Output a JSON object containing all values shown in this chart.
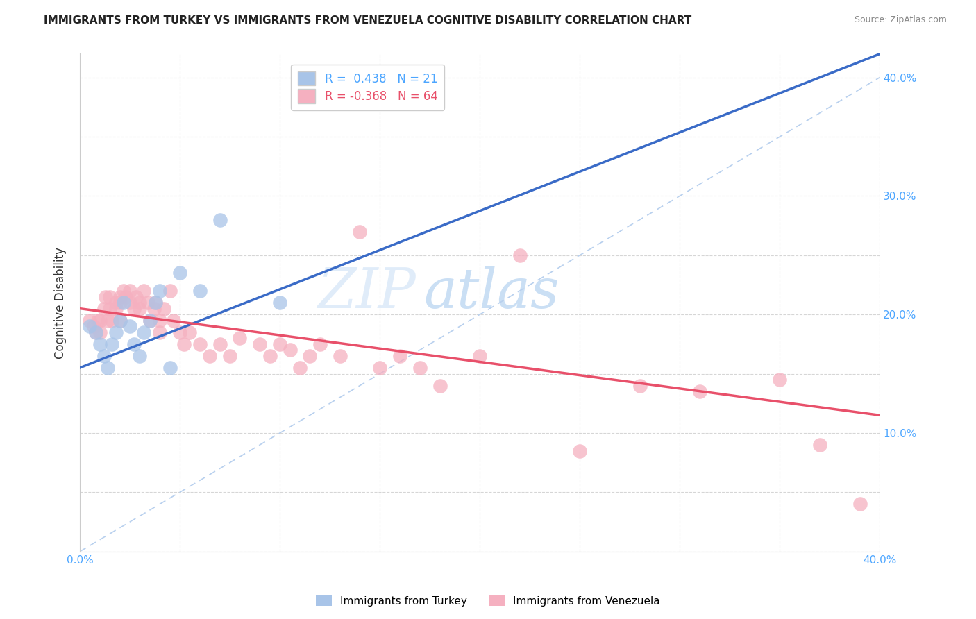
{
  "title": "IMMIGRANTS FROM TURKEY VS IMMIGRANTS FROM VENEZUELA COGNITIVE DISABILITY CORRELATION CHART",
  "source": "Source: ZipAtlas.com",
  "ylabel": "Cognitive Disability",
  "xlim": [
    0.0,
    0.4
  ],
  "ylim": [
    0.0,
    0.42
  ],
  "turkey_R": 0.438,
  "turkey_N": 21,
  "venezuela_R": -0.368,
  "venezuela_N": 64,
  "turkey_color": "#a8c4e8",
  "venezuela_color": "#f5b0c0",
  "turkey_line_color": "#3a6bc7",
  "venezuela_line_color": "#e8506a",
  "dashed_line_color": "#b8d0ee",
  "background_color": "#ffffff",
  "turkey_x": [
    0.005,
    0.008,
    0.01,
    0.012,
    0.014,
    0.016,
    0.018,
    0.02,
    0.022,
    0.025,
    0.027,
    0.03,
    0.032,
    0.035,
    0.038,
    0.04,
    0.045,
    0.05,
    0.06,
    0.07,
    0.1
  ],
  "turkey_y": [
    0.19,
    0.185,
    0.175,
    0.165,
    0.155,
    0.175,
    0.185,
    0.195,
    0.21,
    0.19,
    0.175,
    0.165,
    0.185,
    0.195,
    0.21,
    0.22,
    0.155,
    0.235,
    0.22,
    0.28,
    0.21
  ],
  "venezuela_x": [
    0.005,
    0.007,
    0.008,
    0.009,
    0.01,
    0.01,
    0.012,
    0.013,
    0.014,
    0.015,
    0.015,
    0.016,
    0.018,
    0.018,
    0.02,
    0.02,
    0.02,
    0.022,
    0.023,
    0.025,
    0.025,
    0.027,
    0.028,
    0.03,
    0.03,
    0.032,
    0.034,
    0.035,
    0.037,
    0.038,
    0.04,
    0.04,
    0.042,
    0.045,
    0.047,
    0.05,
    0.052,
    0.055,
    0.06,
    0.065,
    0.07,
    0.075,
    0.08,
    0.09,
    0.095,
    0.1,
    0.105,
    0.11,
    0.115,
    0.12,
    0.13,
    0.14,
    0.15,
    0.16,
    0.17,
    0.18,
    0.2,
    0.22,
    0.25,
    0.28,
    0.31,
    0.35,
    0.37,
    0.39
  ],
  "venezuela_y": [
    0.195,
    0.19,
    0.185,
    0.195,
    0.195,
    0.185,
    0.205,
    0.215,
    0.195,
    0.205,
    0.215,
    0.195,
    0.21,
    0.205,
    0.215,
    0.21,
    0.195,
    0.22,
    0.215,
    0.22,
    0.21,
    0.205,
    0.215,
    0.21,
    0.205,
    0.22,
    0.21,
    0.195,
    0.205,
    0.21,
    0.195,
    0.185,
    0.205,
    0.22,
    0.195,
    0.185,
    0.175,
    0.185,
    0.175,
    0.165,
    0.175,
    0.165,
    0.18,
    0.175,
    0.165,
    0.175,
    0.17,
    0.155,
    0.165,
    0.175,
    0.165,
    0.27,
    0.155,
    0.165,
    0.155,
    0.14,
    0.165,
    0.25,
    0.085,
    0.14,
    0.135,
    0.145,
    0.09,
    0.04
  ]
}
